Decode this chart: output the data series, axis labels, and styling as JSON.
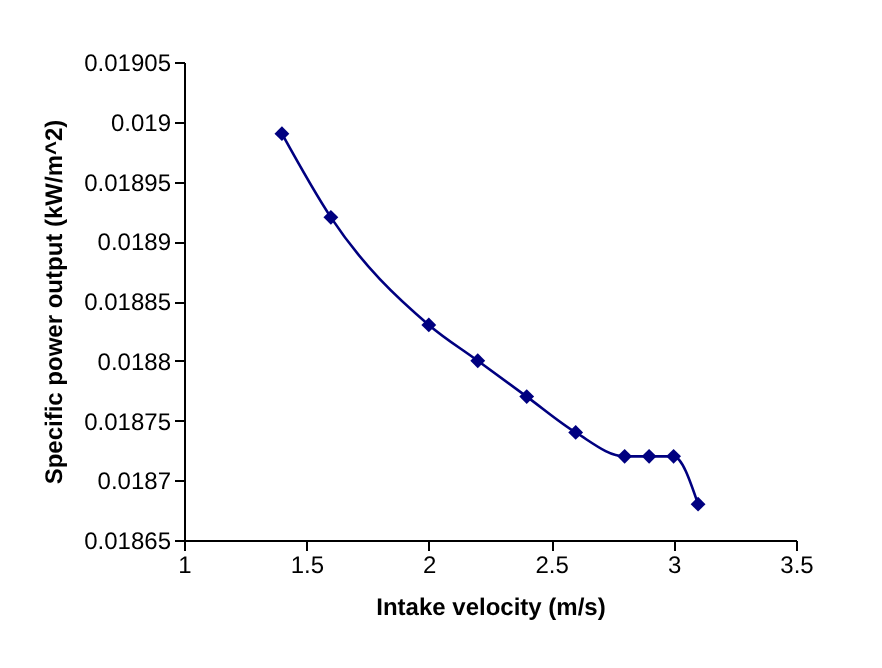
{
  "chart_data": {
    "type": "line",
    "xlabel": "Intake velocity (m/s)",
    "ylabel": "Specific power output (kW/m^2)",
    "x": [
      1.4,
      1.6,
      2.0,
      2.2,
      2.4,
      2.6,
      2.8,
      2.9,
      3.0,
      3.1
    ],
    "series": [
      {
        "color": "#000080",
        "values": [
          0.01899,
          0.01892,
          0.01883,
          0.0188,
          0.01877,
          0.01874,
          0.01872,
          0.01872,
          0.01872,
          0.01868
        ]
      }
    ],
    "xlim": [
      1,
      3.5
    ],
    "xticks": [
      1,
      1.5,
      2,
      2.5,
      3,
      3.5
    ],
    "ylim": [
      0.01865,
      0.01905
    ],
    "yticks": [
      0.01865,
      0.0187,
      0.01875,
      0.0188,
      0.01885,
      0.0189,
      0.01895,
      0.019,
      0.01905
    ],
    "grid": false,
    "marker": "diamond",
    "line_style": "solid"
  }
}
